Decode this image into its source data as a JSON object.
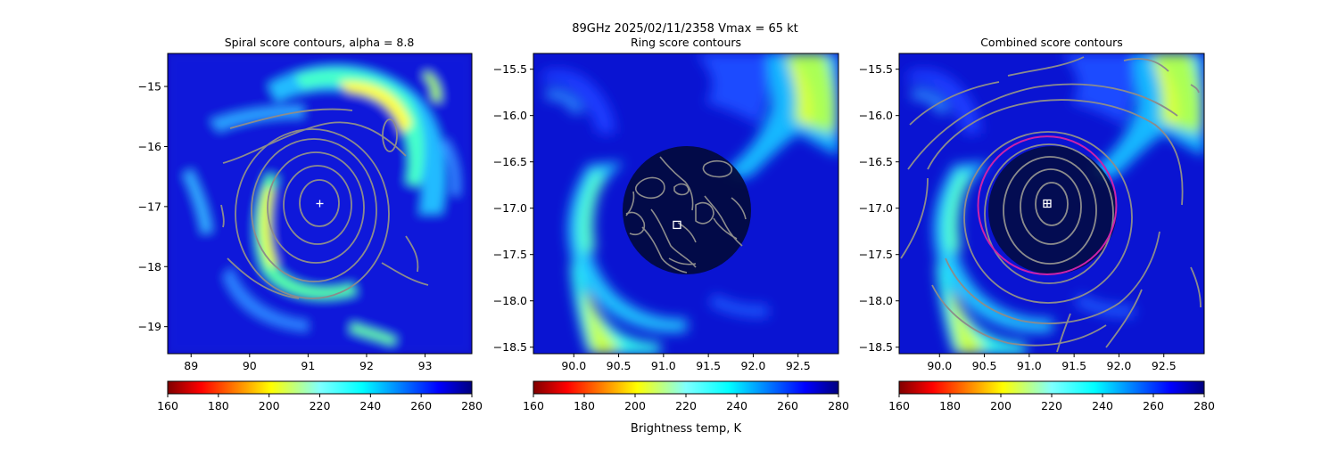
{
  "suptitle": "89GHz  2025/02/11/2358    Vmax = 65 kt",
  "colorbar_label": "Brightness temp, K",
  "colormap": "jet_r",
  "colors": {
    "contour": "#8c8c8c",
    "center_marker": "#ffffff",
    "ring_circle": "#cc22aa"
  },
  "chart_data": [
    {
      "type": "heatmap",
      "title": "Spiral score contours, alpha =  8.8",
      "xlim": [
        88.6,
        93.8
      ],
      "ylim": [
        -19.45,
        -14.45
      ],
      "xticks": [
        89,
        90,
        91,
        92,
        93
      ],
      "xtick_labels": [
        "89",
        "90",
        "91",
        "92",
        "93"
      ],
      "yticks": [
        -15,
        -16,
        -17,
        -18,
        -19
      ],
      "ytick_labels": [
        "−15",
        "−16",
        "−17",
        "−18",
        "−19"
      ],
      "center": [
        91.2,
        -16.95
      ],
      "center_marker": "plus",
      "colorbar": {
        "vmin": 160,
        "vmax": 280,
        "ticks": [
          160,
          180,
          200,
          220,
          240,
          260,
          280
        ],
        "tick_labels": [
          "160",
          "180",
          "200",
          "220",
          "240",
          "260",
          "280"
        ]
      }
    },
    {
      "type": "heatmap",
      "title": "Ring score contours",
      "xlim": [
        89.55,
        92.95
      ],
      "ylim": [
        -18.57,
        -15.33
      ],
      "xticks": [
        90.0,
        90.5,
        91.0,
        91.5,
        92.0,
        92.5
      ],
      "xtick_labels": [
        "90.0",
        "90.5",
        "91.0",
        "91.5",
        "92.0",
        "92.5"
      ],
      "yticks": [
        -15.5,
        -16.0,
        -16.5,
        -17.0,
        -17.5,
        -18.0,
        -18.5
      ],
      "ytick_labels": [
        "−15.5",
        "−16.0",
        "−16.5",
        "−17.0",
        "−17.5",
        "−18.0",
        "−18.5"
      ],
      "center": [
        91.15,
        -17.18
      ],
      "center_marker": "square",
      "colorbar": {
        "vmin": 160,
        "vmax": 280,
        "ticks": [
          160,
          180,
          200,
          220,
          240,
          260,
          280
        ],
        "tick_labels": [
          "160",
          "180",
          "200",
          "220",
          "240",
          "260",
          "280"
        ]
      }
    },
    {
      "type": "heatmap",
      "title": "Combined score contours",
      "xlim": [
        89.55,
        92.95
      ],
      "ylim": [
        -18.57,
        -15.33
      ],
      "xticks": [
        90.0,
        90.5,
        91.0,
        91.5,
        92.0,
        92.5
      ],
      "xtick_labels": [
        "90.0",
        "90.5",
        "91.0",
        "91.5",
        "92.0",
        "92.5"
      ],
      "yticks": [
        -15.5,
        -16.0,
        -16.5,
        -17.0,
        -17.5,
        -18.0,
        -18.5
      ],
      "ytick_labels": [
        "−15.5",
        "−16.0",
        "−16.5",
        "−17.0",
        "−17.5",
        "−18.0",
        "−18.5"
      ],
      "center": [
        91.2,
        -16.95
      ],
      "center_marker": "square-plus",
      "ring": {
        "center": [
          91.2,
          -16.97
        ],
        "radius_deg": 0.77
      },
      "colorbar": {
        "vmin": 160,
        "vmax": 280,
        "ticks": [
          160,
          180,
          200,
          220,
          240,
          260,
          280
        ],
        "tick_labels": [
          "160",
          "180",
          "200",
          "220",
          "240",
          "260",
          "280"
        ]
      }
    }
  ]
}
